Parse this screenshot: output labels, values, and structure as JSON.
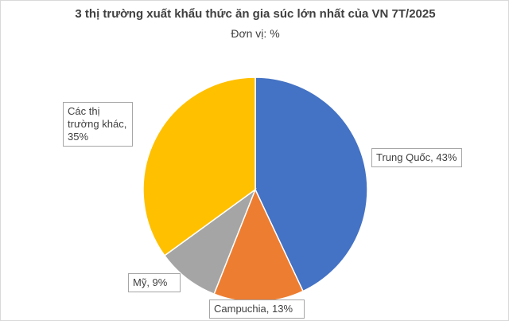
{
  "chart_data": {
    "type": "pie",
    "title": "3 thị trường xuất khẩu thức ăn gia súc lớn nhất của VN 7T/2025",
    "subtitle": "Đơn vị: %",
    "categories": [
      "Trung Quốc",
      "Campuchia",
      "Mỹ",
      "Các thị trường khác"
    ],
    "values": [
      43,
      13,
      9,
      35
    ],
    "value_labels": [
      "Trung Quốc, 43%",
      "Campuchia, 13%",
      "Mỹ, 9%",
      "Các thị trường khác, 35%"
    ],
    "colors": [
      "#4472c4",
      "#ed7d31",
      "#a5a5a5",
      "#ffc000"
    ]
  }
}
